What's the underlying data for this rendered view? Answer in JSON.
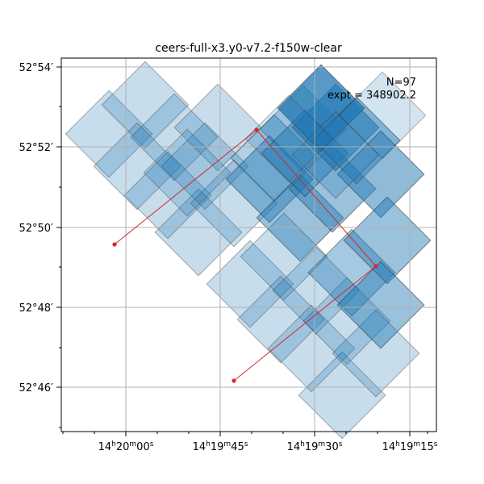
{
  "chart_data": {
    "type": "scatter",
    "title": "ceers-full-x3.y0-v7.2-f150w-clear",
    "annotation": {
      "n": "N=97",
      "expt": "expt = 348902.2"
    },
    "x_ticks": [
      "14h20m00s",
      "14h19m45s",
      "14h19m30s",
      "14h19m15s"
    ],
    "y_ticks": [
      "52°54′",
      "52°52′",
      "52°50′",
      "52°48′",
      "52°46′"
    ],
    "grid": true,
    "path_points": [
      {
        "ra": "14h19m57s",
        "dec": "52°49′25″"
      },
      {
        "ra": "14h19m39s",
        "dec": "52°52′27″"
      },
      {
        "ra": "14h19m20s",
        "dec": "52°49′00″"
      },
      {
        "ra": "14h19m43s",
        "dec": "52°46′10″"
      }
    ],
    "colors": {
      "footprint": "#1f77b4",
      "path": "#d62728",
      "grid": "#b0b0b0"
    }
  }
}
